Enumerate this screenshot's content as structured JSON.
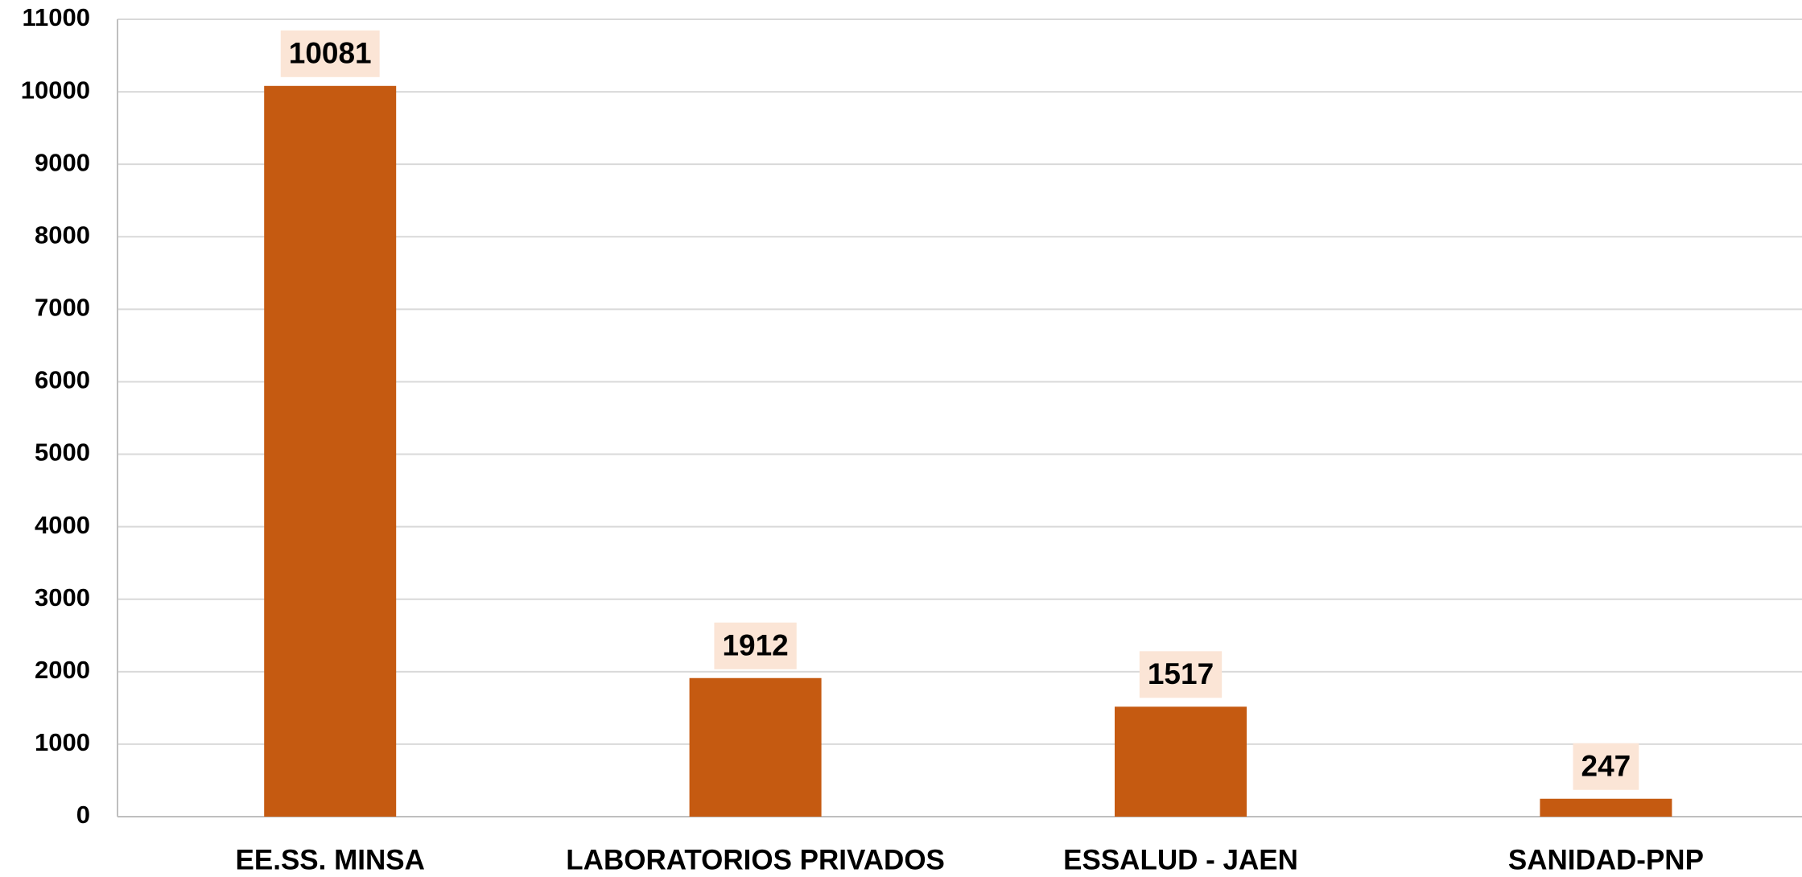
{
  "chart_data": {
    "type": "bar",
    "categories": [
      "EE.SS. MINSA",
      "LABORATORIOS PRIVADOS",
      "ESSALUD - JAEN",
      "SANIDAD-PNP"
    ],
    "values": [
      10081,
      1912,
      1517,
      247
    ],
    "color": "#c55a11",
    "ylim": [
      0,
      11000
    ],
    "yticks": [
      0,
      1000,
      2000,
      3000,
      4000,
      5000,
      6000,
      7000,
      8000,
      9000,
      10000,
      11000
    ],
    "grid": true
  }
}
